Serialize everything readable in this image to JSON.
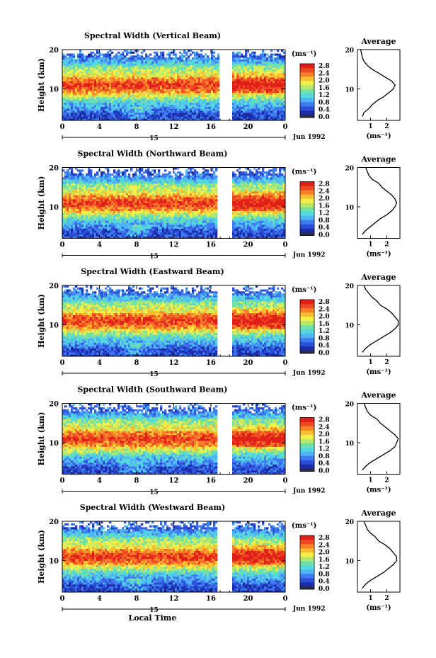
{
  "figure": {
    "bottom_label": "Local Time",
    "date_label": "Jun 1992",
    "day_label": "15",
    "unit_label": "(ms⁻¹)",
    "colorbar_ticks": [
      "2.8",
      "2.4",
      "2.0",
      "1.6",
      "1.2",
      "0.8",
      "0.4",
      "0.0"
    ],
    "average_title": "Average",
    "average_xticks": [
      "1",
      "2"
    ],
    "average_yticks": [
      "20",
      "10"
    ],
    "colormap": [
      "#1a2da8",
      "#2b4fd8",
      "#3f7bf0",
      "#4fb4f5",
      "#54d8e0",
      "#6fe0a8",
      "#b8e86a",
      "#f4f04a",
      "#f8c030",
      "#f88028",
      "#f04a24",
      "#e02018"
    ]
  },
  "chart_data": [
    {
      "type": "heatmap",
      "title": "Spectral Width (Vertical Beam)",
      "xlabel": "",
      "ylabel": "Height (km)",
      "xticks": [
        "0",
        "4",
        "8",
        "12",
        "16",
        "20",
        "0"
      ],
      "yticks": [
        "20",
        "10"
      ],
      "xlim": [
        0,
        24
      ],
      "ylim": [
        2,
        20
      ],
      "gap": [
        16.8,
        18.2
      ],
      "colorbar": {
        "range": [
          0.0,
          3.0
        ]
      },
      "average": {
        "title": "Average",
        "heights": [
          3,
          4,
          5,
          6,
          7,
          8,
          9,
          10,
          11,
          12,
          13,
          14,
          15,
          16,
          17,
          18,
          19,
          20
        ],
        "values": [
          0.5,
          0.6,
          0.9,
          1.1,
          1.4,
          1.8,
          2.1,
          2.4,
          2.5,
          2.3,
          1.9,
          1.5,
          1.1,
          0.8,
          0.6,
          0.5,
          0.45,
          0.4
        ]
      }
    },
    {
      "type": "heatmap",
      "title": "Spectral Width (Northward Beam)",
      "xlabel": "",
      "ylabel": "Height (km)",
      "xticks": [
        "0",
        "4",
        "8",
        "12",
        "16",
        "20",
        "0"
      ],
      "yticks": [
        "20",
        "10"
      ],
      "xlim": [
        0,
        24
      ],
      "ylim": [
        2,
        20
      ],
      "gap": [
        16.6,
        18.2
      ],
      "colorbar": {
        "range": [
          0.0,
          3.0
        ]
      },
      "average": {
        "title": "Average",
        "heights": [
          3,
          4,
          5,
          6,
          7,
          8,
          9,
          10,
          11,
          12,
          13,
          14,
          15,
          16,
          17,
          18,
          19,
          20
        ],
        "values": [
          0.5,
          0.7,
          1.0,
          1.3,
          1.6,
          2.0,
          2.3,
          2.5,
          2.6,
          2.5,
          2.3,
          2.0,
          1.7,
          1.5,
          1.1,
          0.9,
          0.8,
          0.7
        ]
      }
    },
    {
      "type": "heatmap",
      "title": "Spectral Width (Eastward Beam)",
      "xlabel": "",
      "ylabel": "Height (km)",
      "xticks": [
        "0",
        "4",
        "8",
        "12",
        "16",
        "20",
        "0"
      ],
      "yticks": [
        "20",
        "10"
      ],
      "xlim": [
        0,
        24
      ],
      "ylim": [
        2,
        20
      ],
      "gap": [
        16.6,
        18.2
      ],
      "colorbar": {
        "range": [
          0.0,
          3.0
        ]
      },
      "average": {
        "title": "Average",
        "heights": [
          3,
          4,
          5,
          6,
          7,
          8,
          9,
          10,
          11,
          12,
          13,
          14,
          15,
          16,
          17,
          18,
          19,
          20
        ],
        "values": [
          0.5,
          0.7,
          1.0,
          1.4,
          1.8,
          2.2,
          2.5,
          2.7,
          2.7,
          2.5,
          2.3,
          2.0,
          1.6,
          1.4,
          1.1,
          0.9,
          0.7,
          0.6
        ]
      }
    },
    {
      "type": "heatmap",
      "title": "Spectral Width (Southward Beam)",
      "xlabel": "",
      "ylabel": "Height (km)",
      "xticks": [
        "0",
        "4",
        "8",
        "12",
        "16",
        "20",
        "0"
      ],
      "yticks": [
        "20",
        "10"
      ],
      "xlim": [
        0,
        24
      ],
      "ylim": [
        2,
        20
      ],
      "gap": [
        16.6,
        18.2
      ],
      "colorbar": {
        "range": [
          0.0,
          3.0
        ]
      },
      "average": {
        "title": "Average",
        "heights": [
          3,
          4,
          5,
          6,
          7,
          8,
          9,
          10,
          11,
          12,
          13,
          14,
          15,
          16,
          17,
          18,
          19,
          20
        ],
        "values": [
          0.5,
          0.7,
          1.0,
          1.4,
          1.8,
          2.2,
          2.5,
          2.6,
          2.7,
          2.5,
          2.2,
          1.9,
          1.6,
          1.4,
          1.0,
          0.8,
          0.7,
          0.6
        ]
      }
    },
    {
      "type": "heatmap",
      "title": "Spectral Width (Westward Beam)",
      "xlabel": "Local Time",
      "ylabel": "Height (km)",
      "xticks": [
        "0",
        "4",
        "8",
        "12",
        "16",
        "20",
        "0"
      ],
      "yticks": [
        "20",
        "10"
      ],
      "xlim": [
        0,
        24
      ],
      "ylim": [
        2,
        20
      ],
      "gap": [
        16.6,
        18.2
      ],
      "colorbar": {
        "range": [
          0.0,
          3.0
        ]
      },
      "average": {
        "title": "Average",
        "heights": [
          3,
          4,
          5,
          6,
          7,
          8,
          9,
          10,
          11,
          12,
          13,
          14,
          15,
          16,
          17,
          18,
          19,
          20
        ],
        "values": [
          0.5,
          0.7,
          1.0,
          1.4,
          1.8,
          2.1,
          2.4,
          2.6,
          2.6,
          2.4,
          2.2,
          1.9,
          1.5,
          1.3,
          1.0,
          0.8,
          0.7,
          0.6
        ]
      }
    }
  ]
}
